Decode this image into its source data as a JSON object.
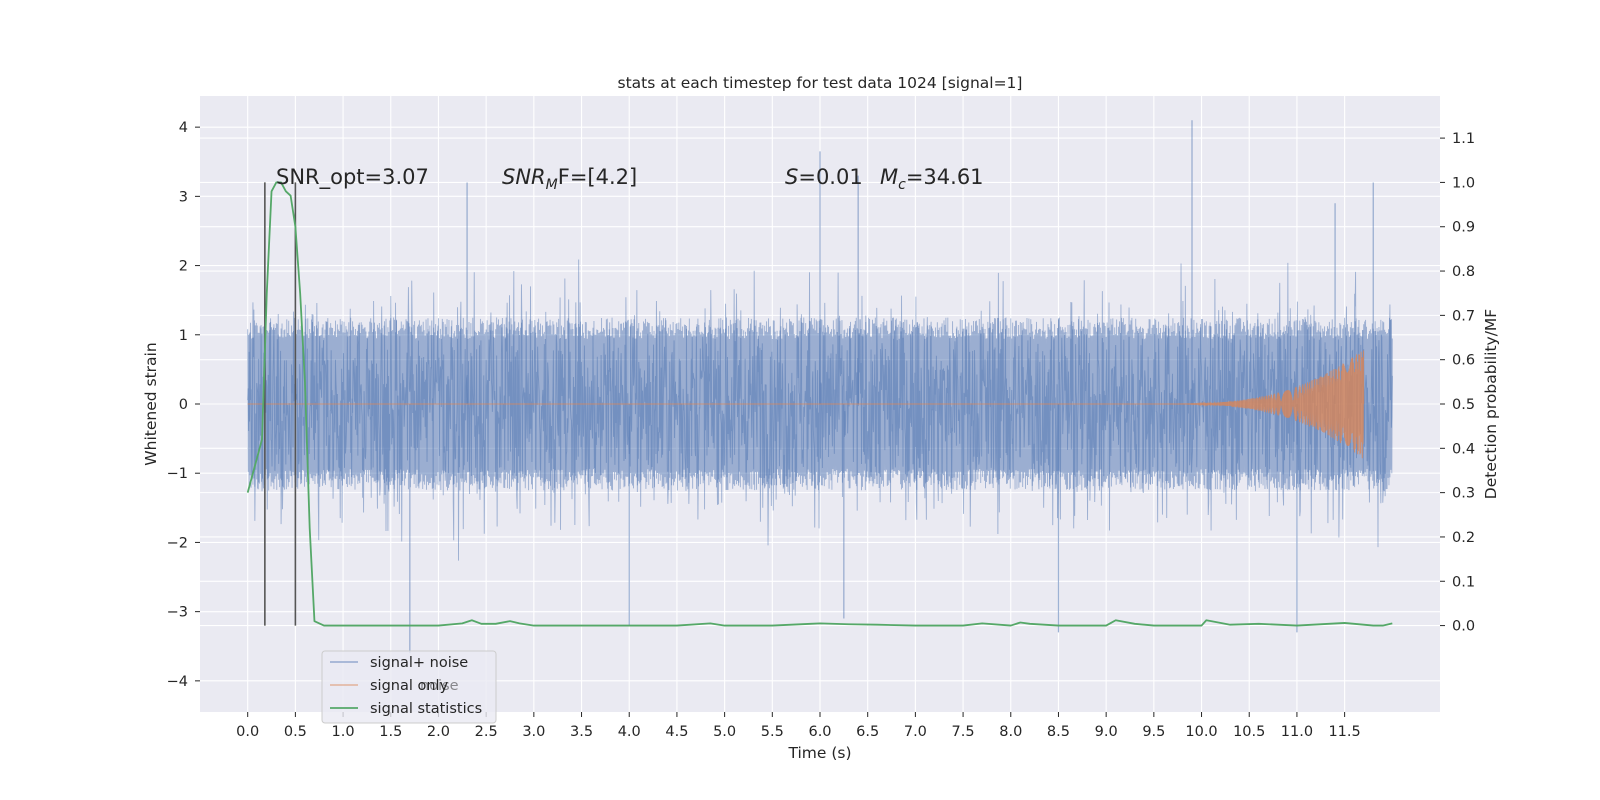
{
  "chart_data": {
    "type": "line",
    "title": "stats at each timestep for test data 1024 [signal=1]",
    "xlabel": "Time (s)",
    "ylabel_left": "Whitened strain",
    "ylabel_right": "Detection probability/MF",
    "xlim": [
      -0.5,
      12.5
    ],
    "ylim_left": [
      -4.45,
      4.45
    ],
    "ylim_right": [
      -0.195,
      1.195
    ],
    "x_ticks": [
      "0.0",
      "0.5",
      "1.0",
      "1.5",
      "2.0",
      "2.5",
      "3.0",
      "3.5",
      "4.0",
      "4.5",
      "5.0",
      "5.5",
      "6.0",
      "6.5",
      "7.0",
      "7.5",
      "8.0",
      "8.5",
      "9.0",
      "9.5",
      "10.0",
      "10.5",
      "11.0",
      "11.5"
    ],
    "y_ticks_left": [
      "4",
      "3",
      "2",
      "1",
      "0",
      "−1",
      "−2",
      "−3",
      "−4"
    ],
    "y_ticks_right": [
      "1.1",
      "1.0",
      "0.9",
      "0.8",
      "0.7",
      "0.6",
      "0.5",
      "0.4",
      "0.3",
      "0.2",
      "0.1",
      "0.0"
    ],
    "grid": true,
    "annotations": {
      "snr_opt": "SNR_opt=3.07",
      "snr_mf_base": "SNR",
      "snr_mf_sub": "M",
      "snr_mf_rest": "F=[4.2]",
      "s_label": "S",
      "s_value": "=0.01",
      "mc_label": "M",
      "mc_sub": "c",
      "mc_value": "=34.61"
    },
    "vertical_markers_x": [
      0.18,
      0.5
    ],
    "legend": {
      "placement": "lower-left",
      "entries": [
        "signal+ noise",
        "signal only",
        "signal statistics"
      ],
      "overlap_text": "noise"
    },
    "series": [
      {
        "name": "signal+ noise",
        "axis": "left",
        "color": "#4c72b0",
        "description_values": {
          "t_start": 0.0,
          "t_end": 12.0,
          "core_band": [
            -1.25,
            1.25
          ],
          "typical_peak": [
            -2.0,
            2.0
          ],
          "spikes": [
            [
              1.7,
              -3.6
            ],
            [
              2.3,
              3.2
            ],
            [
              4.0,
              -3.2
            ],
            [
              6.0,
              3.65
            ],
            [
              6.25,
              -3.1
            ],
            [
              6.4,
              3.3
            ],
            [
              8.5,
              -3.3
            ],
            [
              9.9,
              4.1
            ],
            [
              11.0,
              -3.3
            ],
            [
              11.4,
              2.9
            ],
            [
              11.8,
              3.2
            ]
          ]
        }
      },
      {
        "name": "signal only",
        "axis": "left",
        "color": "#dd8452",
        "chirp": {
          "t_start": 9.5,
          "t_end": 11.7,
          "peak_amplitude": 0.8
        }
      },
      {
        "name": "signal statistics",
        "axis": "right",
        "color": "#55a868",
        "x": [
          0.0,
          0.05,
          0.1,
          0.15,
          0.2,
          0.25,
          0.3,
          0.35,
          0.4,
          0.45,
          0.5,
          0.55,
          0.6,
          0.65,
          0.7,
          0.8,
          1.0,
          1.5,
          2.0,
          2.25,
          2.35,
          2.45,
          2.6,
          2.75,
          2.85,
          3.0,
          3.5,
          4.0,
          4.5,
          4.85,
          5.0,
          5.5,
          5.9,
          6.0,
          6.3,
          6.6,
          7.0,
          7.5,
          7.7,
          8.0,
          8.1,
          8.2,
          8.5,
          9.0,
          9.05,
          9.1,
          9.3,
          9.5,
          10.0,
          10.05,
          10.1,
          10.3,
          10.6,
          11.0,
          11.5,
          11.8,
          11.9,
          12.0
        ],
        "y": [
          0.3,
          0.34,
          0.38,
          0.42,
          0.75,
          0.98,
          1.0,
          1.0,
          0.98,
          0.97,
          0.9,
          0.75,
          0.55,
          0.22,
          0.01,
          0.0,
          0.0,
          0.0,
          0.0,
          0.005,
          0.012,
          0.004,
          0.004,
          0.01,
          0.005,
          0.0,
          0.0,
          0.0,
          0.0,
          0.005,
          0.0,
          0.0,
          0.004,
          0.005,
          0.003,
          0.002,
          0.0,
          0.0,
          0.005,
          0.0,
          0.007,
          0.004,
          0.0,
          0.0,
          0.006,
          0.012,
          0.004,
          0.0,
          0.0,
          0.012,
          0.01,
          0.002,
          0.004,
          0.0,
          0.006,
          0.0,
          0.0,
          0.005
        ]
      }
    ]
  }
}
